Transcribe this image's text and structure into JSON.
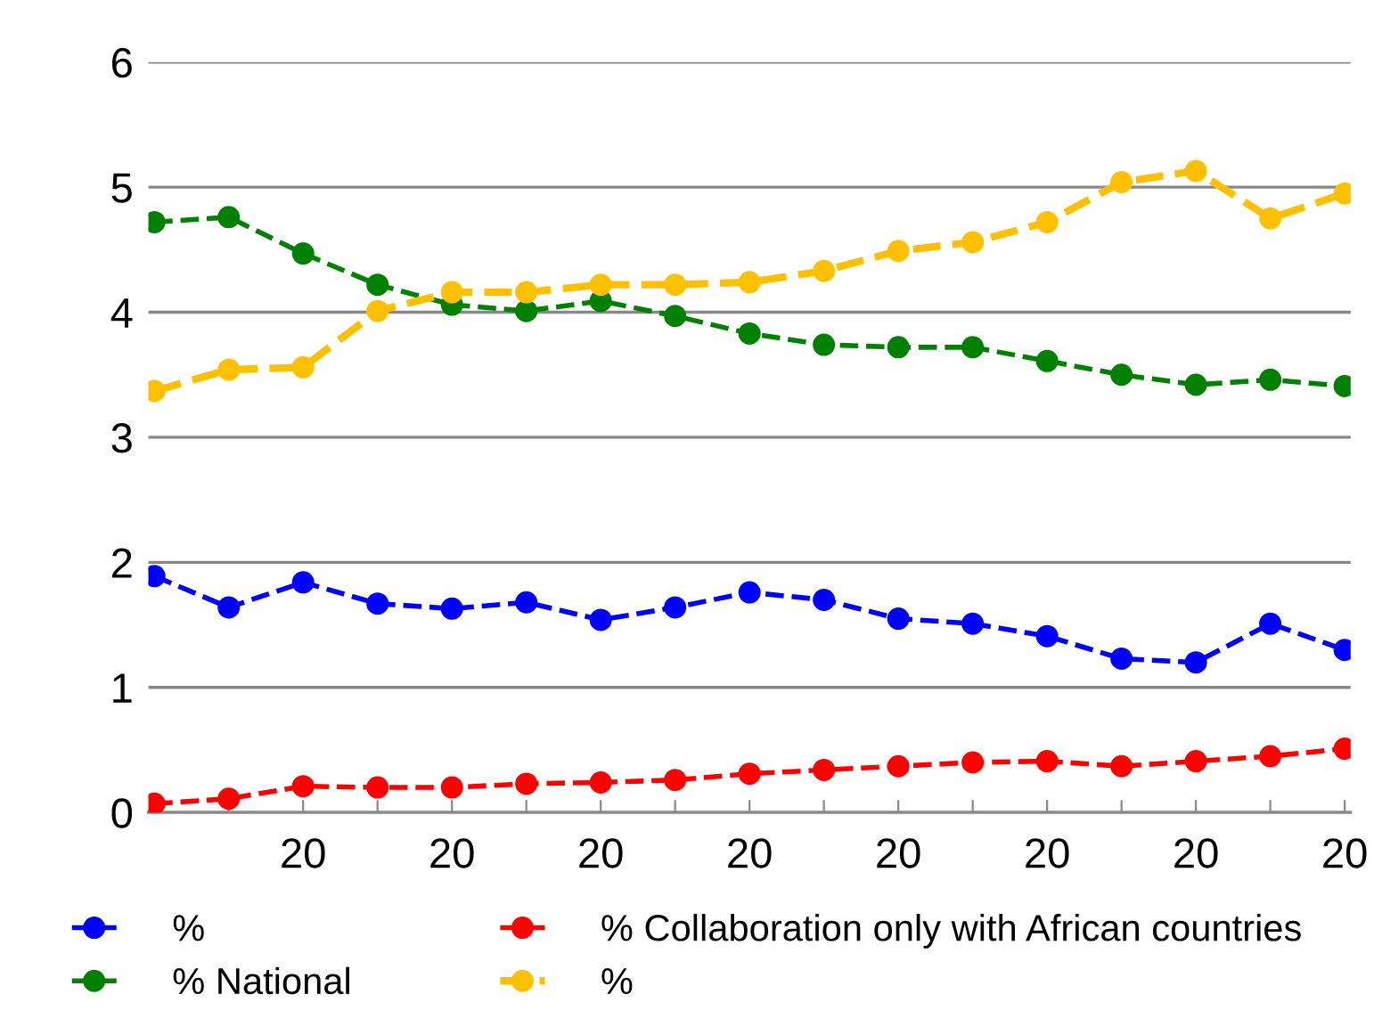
{
  "chart_data": {
    "type": "line",
    "categories": [
      null,
      null,
      "20",
      null,
      "20",
      null,
      "20",
      null,
      "20",
      null,
      "20",
      null,
      "20",
      null,
      "20",
      null,
      "20"
    ],
    "series": [
      {
        "name": "%",
        "color": "#0000ff",
        "values": [
          1.89,
          1.64,
          1.84,
          1.67,
          1.63,
          1.68,
          1.54,
          1.64,
          1.76,
          1.7,
          1.55,
          1.51,
          1.41,
          1.23,
          1.2,
          1.51,
          1.3
        ]
      },
      {
        "name": "% National",
        "color": "#008000",
        "values": [
          4.72,
          4.76,
          4.47,
          4.22,
          4.06,
          4.01,
          4.09,
          3.97,
          3.83,
          3.74,
          3.72,
          3.72,
          3.61,
          3.5,
          3.42,
          3.46,
          3.41
        ]
      },
      {
        "name": "% Collaboration only with African countries",
        "color": "#ff0000",
        "values": [
          0.07,
          0.11,
          0.21,
          0.2,
          0.2,
          0.23,
          0.24,
          0.26,
          0.31,
          0.34,
          0.37,
          0.4,
          0.41,
          0.37,
          0.41,
          0.45,
          0.51
        ]
      },
      {
        "name": "%",
        "color": "#ffc000",
        "values": [
          3.37,
          3.54,
          3.56,
          4.01,
          4.16,
          4.16,
          4.22,
          4.22,
          4.24,
          4.33,
          4.49,
          4.56,
          4.72,
          5.04,
          5.13,
          4.75,
          4.95
        ]
      }
    ],
    "ylim": [
      0,
      6
    ],
    "yticks": [
      0,
      1,
      2,
      3,
      4,
      5,
      6
    ],
    "grid": "y",
    "legend": "bottom",
    "marker": "circle",
    "line_style": "dashed"
  }
}
